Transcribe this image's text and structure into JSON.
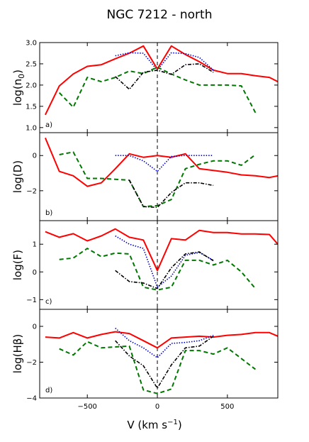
{
  "title": "NGC 7212 - north",
  "xlabel": "V (km s$^{-1}$)",
  "xlim": [
    -840,
    860
  ],
  "xticks": [
    -500,
    0,
    500
  ],
  "colors": {
    "red": "#ff0000",
    "blue": "#0000cc",
    "green": "#007700",
    "black": "#000000"
  },
  "chart_data": [
    {
      "type": "line",
      "panel_label": "a)",
      "ylabel": "log(n_0)",
      "ylim": [
        0.88,
        3.0
      ],
      "yticks": [
        1.0,
        1.5,
        2.0,
        2.5,
        3.0
      ],
      "ytick_labels": [
        "1.0",
        "1.5",
        "2.0",
        "2.5",
        "3.0"
      ],
      "series": [
        {
          "style": "red-solid",
          "x": [
            -800,
            -700,
            -600,
            -500,
            -400,
            -300,
            -200,
            -100,
            0,
            100,
            200,
            300,
            400,
            500,
            600,
            700,
            800,
            860
          ],
          "y": [
            1.3,
            1.98,
            2.26,
            2.44,
            2.48,
            2.62,
            2.75,
            2.92,
            2.38,
            2.92,
            2.72,
            2.55,
            2.35,
            2.27,
            2.27,
            2.22,
            2.18,
            2.08
          ]
        },
        {
          "style": "blue-dotted",
          "x": [
            -300,
            -200,
            -100,
            0,
            100,
            200,
            300,
            400
          ],
          "y": [
            2.69,
            2.76,
            2.75,
            2.35,
            2.76,
            2.74,
            2.65,
            2.35
          ]
        },
        {
          "style": "green-dashed",
          "x": [
            -700,
            -600,
            -500,
            -400,
            -300,
            -200,
            -100,
            0,
            100,
            200,
            300,
            400,
            500,
            600,
            700
          ],
          "y": [
            1.82,
            1.48,
            2.18,
            2.08,
            2.18,
            2.33,
            2.27,
            2.42,
            2.26,
            2.12,
            2.0,
            2.0,
            2.0,
            1.98,
            1.35
          ]
        },
        {
          "style": "black-dashdot",
          "x": [
            -300,
            -200,
            -100,
            0,
            100,
            200,
            300,
            400
          ],
          "y": [
            2.2,
            1.9,
            2.3,
            2.35,
            2.25,
            2.48,
            2.5,
            2.3
          ]
        }
      ]
    },
    {
      "type": "line",
      "panel_label": "b)",
      "ylabel": "log(D)",
      "ylim": [
        -3.7,
        1.3
      ],
      "yticks": [
        -2,
        0
      ],
      "ytick_labels": [
        "−2",
        "0"
      ],
      "series": [
        {
          "style": "red-solid",
          "x": [
            -800,
            -700,
            -600,
            -500,
            -400,
            -300,
            -200,
            -100,
            0,
            100,
            200,
            300,
            400,
            500,
            600,
            700,
            800,
            860
          ],
          "y": [
            1.0,
            -0.9,
            -1.15,
            -1.75,
            -1.55,
            -0.75,
            0.1,
            -0.1,
            0.0,
            -0.1,
            0.1,
            -0.75,
            -0.85,
            -0.95,
            -1.1,
            -1.15,
            -1.25,
            -1.15
          ]
        },
        {
          "style": "blue-dotted",
          "x": [
            -300,
            -200,
            -100,
            0,
            100,
            200,
            300,
            400
          ],
          "y": [
            0.0,
            0.0,
            -0.3,
            -0.9,
            -0.05,
            0.0,
            0.0,
            0.0
          ]
        },
        {
          "style": "green-dashed",
          "x": [
            -700,
            -600,
            -500,
            -400,
            -300,
            -200,
            -100,
            0,
            100,
            200,
            300,
            400,
            500,
            600,
            700
          ],
          "y": [
            0.05,
            0.2,
            -1.3,
            -1.3,
            -1.35,
            -1.4,
            -2.9,
            -2.85,
            -2.5,
            -0.75,
            -0.5,
            -0.3,
            -0.3,
            -0.55,
            0.05
          ]
        },
        {
          "style": "black-dashdot",
          "x": [
            -200,
            -100,
            0,
            100,
            200,
            300,
            400
          ],
          "y": [
            -1.4,
            -2.9,
            -2.95,
            -2.1,
            -1.55,
            -1.55,
            -1.7
          ]
        }
      ]
    },
    {
      "type": "line",
      "panel_label": "c)",
      "ylabel": "log(F)",
      "ylim": [
        -1.35,
        1.85
      ],
      "yticks": [
        -1,
        0,
        1
      ],
      "ytick_labels": [
        "−1",
        "0",
        "1"
      ],
      "series": [
        {
          "style": "red-solid",
          "x": [
            -800,
            -700,
            -600,
            -500,
            -400,
            -300,
            -200,
            -100,
            0,
            100,
            200,
            300,
            400,
            500,
            600,
            700,
            800,
            860
          ],
          "y": [
            1.45,
            1.25,
            1.38,
            1.12,
            1.3,
            1.55,
            1.25,
            1.15,
            0.05,
            1.2,
            1.15,
            1.5,
            1.42,
            1.42,
            1.37,
            1.37,
            1.35,
            1.0
          ]
        },
        {
          "style": "blue-dotted",
          "x": [
            -300,
            -200,
            -100,
            0,
            100,
            200,
            300,
            400
          ],
          "y": [
            1.3,
            1.0,
            0.85,
            -0.55,
            -0.15,
            0.6,
            0.7,
            0.42
          ]
        },
        {
          "style": "green-dashed",
          "x": [
            -700,
            -600,
            -500,
            -400,
            -300,
            -200,
            -100,
            0,
            100,
            200,
            300,
            400,
            500,
            600,
            700
          ],
          "y": [
            0.45,
            0.5,
            0.85,
            0.55,
            0.68,
            0.65,
            -0.55,
            -0.65,
            -0.55,
            0.42,
            0.42,
            0.25,
            0.42,
            0.0,
            -0.6
          ]
        },
        {
          "style": "black-dashdot",
          "x": [
            -300,
            -200,
            -100,
            0,
            100,
            200,
            300,
            400
          ],
          "y": [
            0.05,
            -0.35,
            -0.4,
            -0.6,
            0.15,
            0.65,
            0.72,
            0.4
          ]
        }
      ]
    },
    {
      "type": "line",
      "panel_label": "d)",
      "ylabel": "log(Hβ)",
      "ylim": [
        -4.0,
        0.95
      ],
      "yticks": [
        -4,
        -2,
        0
      ],
      "ytick_labels": [
        "−4",
        "−2",
        "0"
      ],
      "series": [
        {
          "style": "red-solid",
          "x": [
            -800,
            -700,
            -600,
            -500,
            -400,
            -300,
            -200,
            -100,
            0,
            100,
            200,
            300,
            400,
            500,
            600,
            700,
            800,
            860
          ],
          "y": [
            -0.6,
            -0.65,
            -0.35,
            -0.65,
            -0.45,
            -0.3,
            -0.4,
            -0.8,
            -1.2,
            -0.65,
            -0.6,
            -0.55,
            -0.6,
            -0.5,
            -0.45,
            -0.35,
            -0.35,
            -0.55
          ]
        },
        {
          "style": "blue-dotted",
          "x": [
            -300,
            -200,
            -100,
            0,
            100,
            200,
            300,
            400
          ],
          "y": [
            -0.1,
            -0.8,
            -1.2,
            -1.75,
            -0.95,
            -0.9,
            -0.8,
            -0.5
          ]
        },
        {
          "style": "green-dashed",
          "x": [
            -700,
            -600,
            -500,
            -400,
            -300,
            -200,
            -100,
            0,
            100,
            200,
            300,
            400,
            500,
            600,
            700
          ],
          "y": [
            -1.25,
            -1.6,
            -0.85,
            -1.2,
            -1.15,
            -1.1,
            -3.55,
            -3.75,
            -3.5,
            -1.35,
            -1.35,
            -1.55,
            -1.2,
            -1.8,
            -2.4
          ]
        },
        {
          "style": "black-dashdot",
          "x": [
            -300,
            -200,
            -100,
            0,
            100,
            200,
            300,
            400
          ],
          "y": [
            -0.8,
            -1.65,
            -2.2,
            -3.45,
            -2.15,
            -1.2,
            -1.1,
            -0.55
          ]
        }
      ]
    }
  ]
}
